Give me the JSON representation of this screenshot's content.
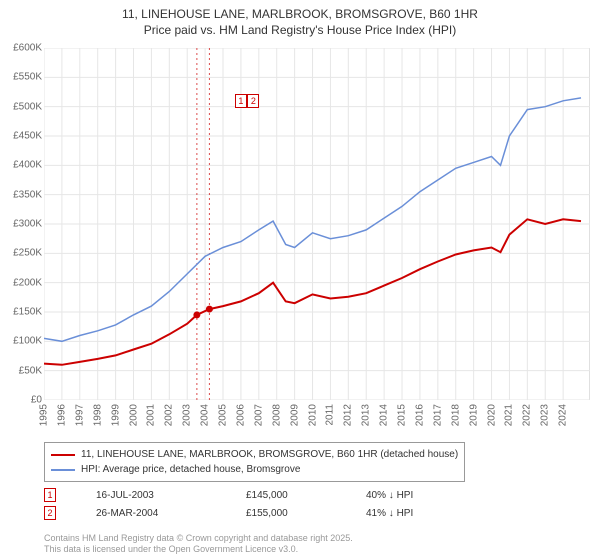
{
  "title_line1": "11, LINEHOUSE LANE, MARLBROOK, BROMSGROVE, B60 1HR",
  "title_line2": "Price paid vs. HM Land Registry's House Price Index (HPI)",
  "chart": {
    "type": "line",
    "background_color": "#ffffff",
    "grid_color": "#e6e6e6",
    "axis_color": "#c0c0c0",
    "tick_font_size": 10,
    "x": {
      "min": 1995,
      "max": 2025.5,
      "ticks": [
        1995,
        1996,
        1997,
        1998,
        1999,
        2000,
        2001,
        2002,
        2003,
        2004,
        2005,
        2006,
        2007,
        2008,
        2009,
        2010,
        2011,
        2012,
        2013,
        2014,
        2015,
        2016,
        2017,
        2018,
        2019,
        2020,
        2021,
        2022,
        2023,
        2024
      ]
    },
    "y": {
      "min": 0,
      "max": 600000,
      "ticks": [
        0,
        50000,
        100000,
        150000,
        200000,
        250000,
        300000,
        350000,
        400000,
        450000,
        500000,
        550000,
        600000
      ],
      "tick_labels": [
        "£0",
        "£50K",
        "£100K",
        "£150K",
        "£200K",
        "£250K",
        "£300K",
        "£350K",
        "£400K",
        "£450K",
        "£500K",
        "£550K",
        "£600K"
      ]
    },
    "series": [
      {
        "name": "hpi",
        "label": "HPI: Average price, detached house, Bromsgrove",
        "color": "#6a8fd8",
        "line_width": 1.5,
        "points": [
          [
            1995,
            105000
          ],
          [
            1996,
            100000
          ],
          [
            1997,
            110000
          ],
          [
            1998,
            118000
          ],
          [
            1999,
            128000
          ],
          [
            2000,
            145000
          ],
          [
            2001,
            160000
          ],
          [
            2002,
            185000
          ],
          [
            2003,
            215000
          ],
          [
            2004,
            245000
          ],
          [
            2005,
            260000
          ],
          [
            2006,
            270000
          ],
          [
            2007,
            290000
          ],
          [
            2007.8,
            305000
          ],
          [
            2008.5,
            265000
          ],
          [
            2009,
            260000
          ],
          [
            2010,
            285000
          ],
          [
            2011,
            275000
          ],
          [
            2012,
            280000
          ],
          [
            2013,
            290000
          ],
          [
            2014,
            310000
          ],
          [
            2015,
            330000
          ],
          [
            2016,
            355000
          ],
          [
            2017,
            375000
          ],
          [
            2018,
            395000
          ],
          [
            2019,
            405000
          ],
          [
            2020,
            415000
          ],
          [
            2020.5,
            400000
          ],
          [
            2021,
            450000
          ],
          [
            2022,
            495000
          ],
          [
            2023,
            500000
          ],
          [
            2024,
            510000
          ],
          [
            2025,
            515000
          ]
        ]
      },
      {
        "name": "price_paid",
        "label": "11, LINEHOUSE LANE, MARLBROOK, BROMSGROVE, B60 1HR (detached house)",
        "color": "#cc0000",
        "line_width": 2,
        "points": [
          [
            1995,
            62000
          ],
          [
            1996,
            60000
          ],
          [
            1997,
            65000
          ],
          [
            1998,
            70000
          ],
          [
            1999,
            76000
          ],
          [
            2000,
            86000
          ],
          [
            2001,
            96000
          ],
          [
            2002,
            112000
          ],
          [
            2003,
            130000
          ],
          [
            2003.54,
            145000
          ],
          [
            2004.24,
            155000
          ],
          [
            2005,
            160000
          ],
          [
            2006,
            168000
          ],
          [
            2007,
            182000
          ],
          [
            2007.8,
            200000
          ],
          [
            2008.5,
            168000
          ],
          [
            2009,
            165000
          ],
          [
            2010,
            180000
          ],
          [
            2011,
            173000
          ],
          [
            2012,
            176000
          ],
          [
            2013,
            182000
          ],
          [
            2014,
            195000
          ],
          [
            2015,
            208000
          ],
          [
            2016,
            223000
          ],
          [
            2017,
            236000
          ],
          [
            2018,
            248000
          ],
          [
            2019,
            255000
          ],
          [
            2020,
            260000
          ],
          [
            2020.5,
            252000
          ],
          [
            2021,
            282000
          ],
          [
            2022,
            308000
          ],
          [
            2023,
            300000
          ],
          [
            2024,
            308000
          ],
          [
            2025,
            305000
          ]
        ]
      }
    ],
    "sale_markers": [
      {
        "n": "1",
        "year": 2003.54,
        "price": 145000,
        "color": "#cc0000"
      },
      {
        "n": "2",
        "year": 2004.24,
        "price": 155000,
        "color": "#cc0000"
      }
    ],
    "marker_label_top_offset": 16
  },
  "legend": {
    "border_color": "#999999",
    "items": [
      {
        "color": "#cc0000",
        "label": "11, LINEHOUSE LANE, MARLBROOK, BROMSGROVE, B60 1HR (detached house)"
      },
      {
        "color": "#6a8fd8",
        "label": "HPI: Average price, detached house, Bromsgrove"
      }
    ]
  },
  "sales": [
    {
      "n": "1",
      "color": "#cc0000",
      "date": "16-JUL-2003",
      "price": "£145,000",
      "diff": "40% ↓ HPI"
    },
    {
      "n": "2",
      "color": "#cc0000",
      "date": "26-MAR-2004",
      "price": "£155,000",
      "diff": "41% ↓ HPI"
    }
  ],
  "attribution_line1": "Contains HM Land Registry data © Crown copyright and database right 2025.",
  "attribution_line2": "This data is licensed under the Open Government Licence v3.0."
}
